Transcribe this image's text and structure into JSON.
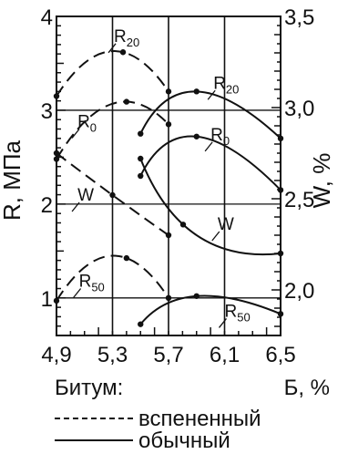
{
  "chart_data": {
    "type": "line",
    "title": "",
    "xlabel": "Б, %",
    "y_left_label": "R, МПа",
    "y_right_label": "W, %",
    "x_ticks": [
      "4,9",
      "5,3",
      "5,7",
      "6,1",
      "6,5"
    ],
    "x_range": [
      4.9,
      6.5
    ],
    "y_left_ticks": [
      "1",
      "2",
      "3",
      "4"
    ],
    "y_left_range": [
      0.6,
      4.0
    ],
    "y_right_ticks": [
      "2,0",
      "2,5",
      "3,0",
      "3,5"
    ],
    "y_right_range": [
      1.75,
      3.5
    ],
    "grid": false,
    "series": [
      {
        "name": "R20",
        "group": "вспененный",
        "axis": "left",
        "style": "dashed",
        "x": [
          4.9,
          5.3,
          5.7
        ],
        "y": [
          3.15,
          3.63,
          3.2
        ],
        "mid_x": 5.375,
        "label_at": [
          5.31,
          3.73
        ]
      },
      {
        "name": "R0",
        "group": "вспененный",
        "axis": "left",
        "style": "dashed",
        "x": [
          4.9,
          5.3,
          5.7
        ],
        "y": [
          2.48,
          3.07,
          2.85
        ],
        "mid_x": 5.4,
        "label_at": [
          5.05,
          2.82
        ]
      },
      {
        "name": "W",
        "group": "вспененный",
        "axis": "right",
        "style": "dashed",
        "x": [
          4.9,
          5.3,
          5.7
        ],
        "y": [
          2.75,
          2.52,
          2.3
        ],
        "label_at": [
          5.05,
          2.49
        ]
      },
      {
        "name": "R50",
        "group": "вспененный",
        "axis": "left",
        "style": "dashed",
        "x": [
          4.9,
          5.3,
          5.7
        ],
        "y": [
          0.97,
          1.45,
          1.0
        ],
        "mid_x": 5.4,
        "label_at": [
          5.06,
          1.12
        ]
      },
      {
        "name": "R20",
        "group": "обычный",
        "axis": "left",
        "style": "solid",
        "x": [
          5.5,
          5.9,
          6.5
        ],
        "y": [
          2.75,
          3.2,
          2.7
        ],
        "mid_x": 6.0,
        "label_at": [
          6.02,
          3.23
        ]
      },
      {
        "name": "R0",
        "group": "обычный",
        "axis": "left",
        "style": "solid",
        "x": [
          5.5,
          5.9,
          6.5
        ],
        "y": [
          2.3,
          2.72,
          2.15
        ],
        "mid_x": 6.0,
        "label_at": [
          6.0,
          2.68
        ]
      },
      {
        "name": "W",
        "group": "обычный",
        "axis": "right",
        "style": "solid",
        "x": [
          5.5,
          5.9,
          6.5
        ],
        "y": [
          2.72,
          2.3,
          2.2
        ],
        "label_at": [
          6.05,
          2.33
        ]
      },
      {
        "name": "R50",
        "group": "обычный",
        "axis": "left",
        "style": "solid",
        "x": [
          5.5,
          5.9,
          6.5
        ],
        "y": [
          0.72,
          1.02,
          0.83
        ],
        "mid_x": 6.0,
        "label_at": [
          6.1,
          0.8
        ]
      }
    ],
    "legend": {
      "title": "Битум:",
      "entries": [
        {
          "label": "вспененный",
          "style": "dashed"
        },
        {
          "label": "обычный",
          "style": "solid"
        }
      ]
    }
  }
}
